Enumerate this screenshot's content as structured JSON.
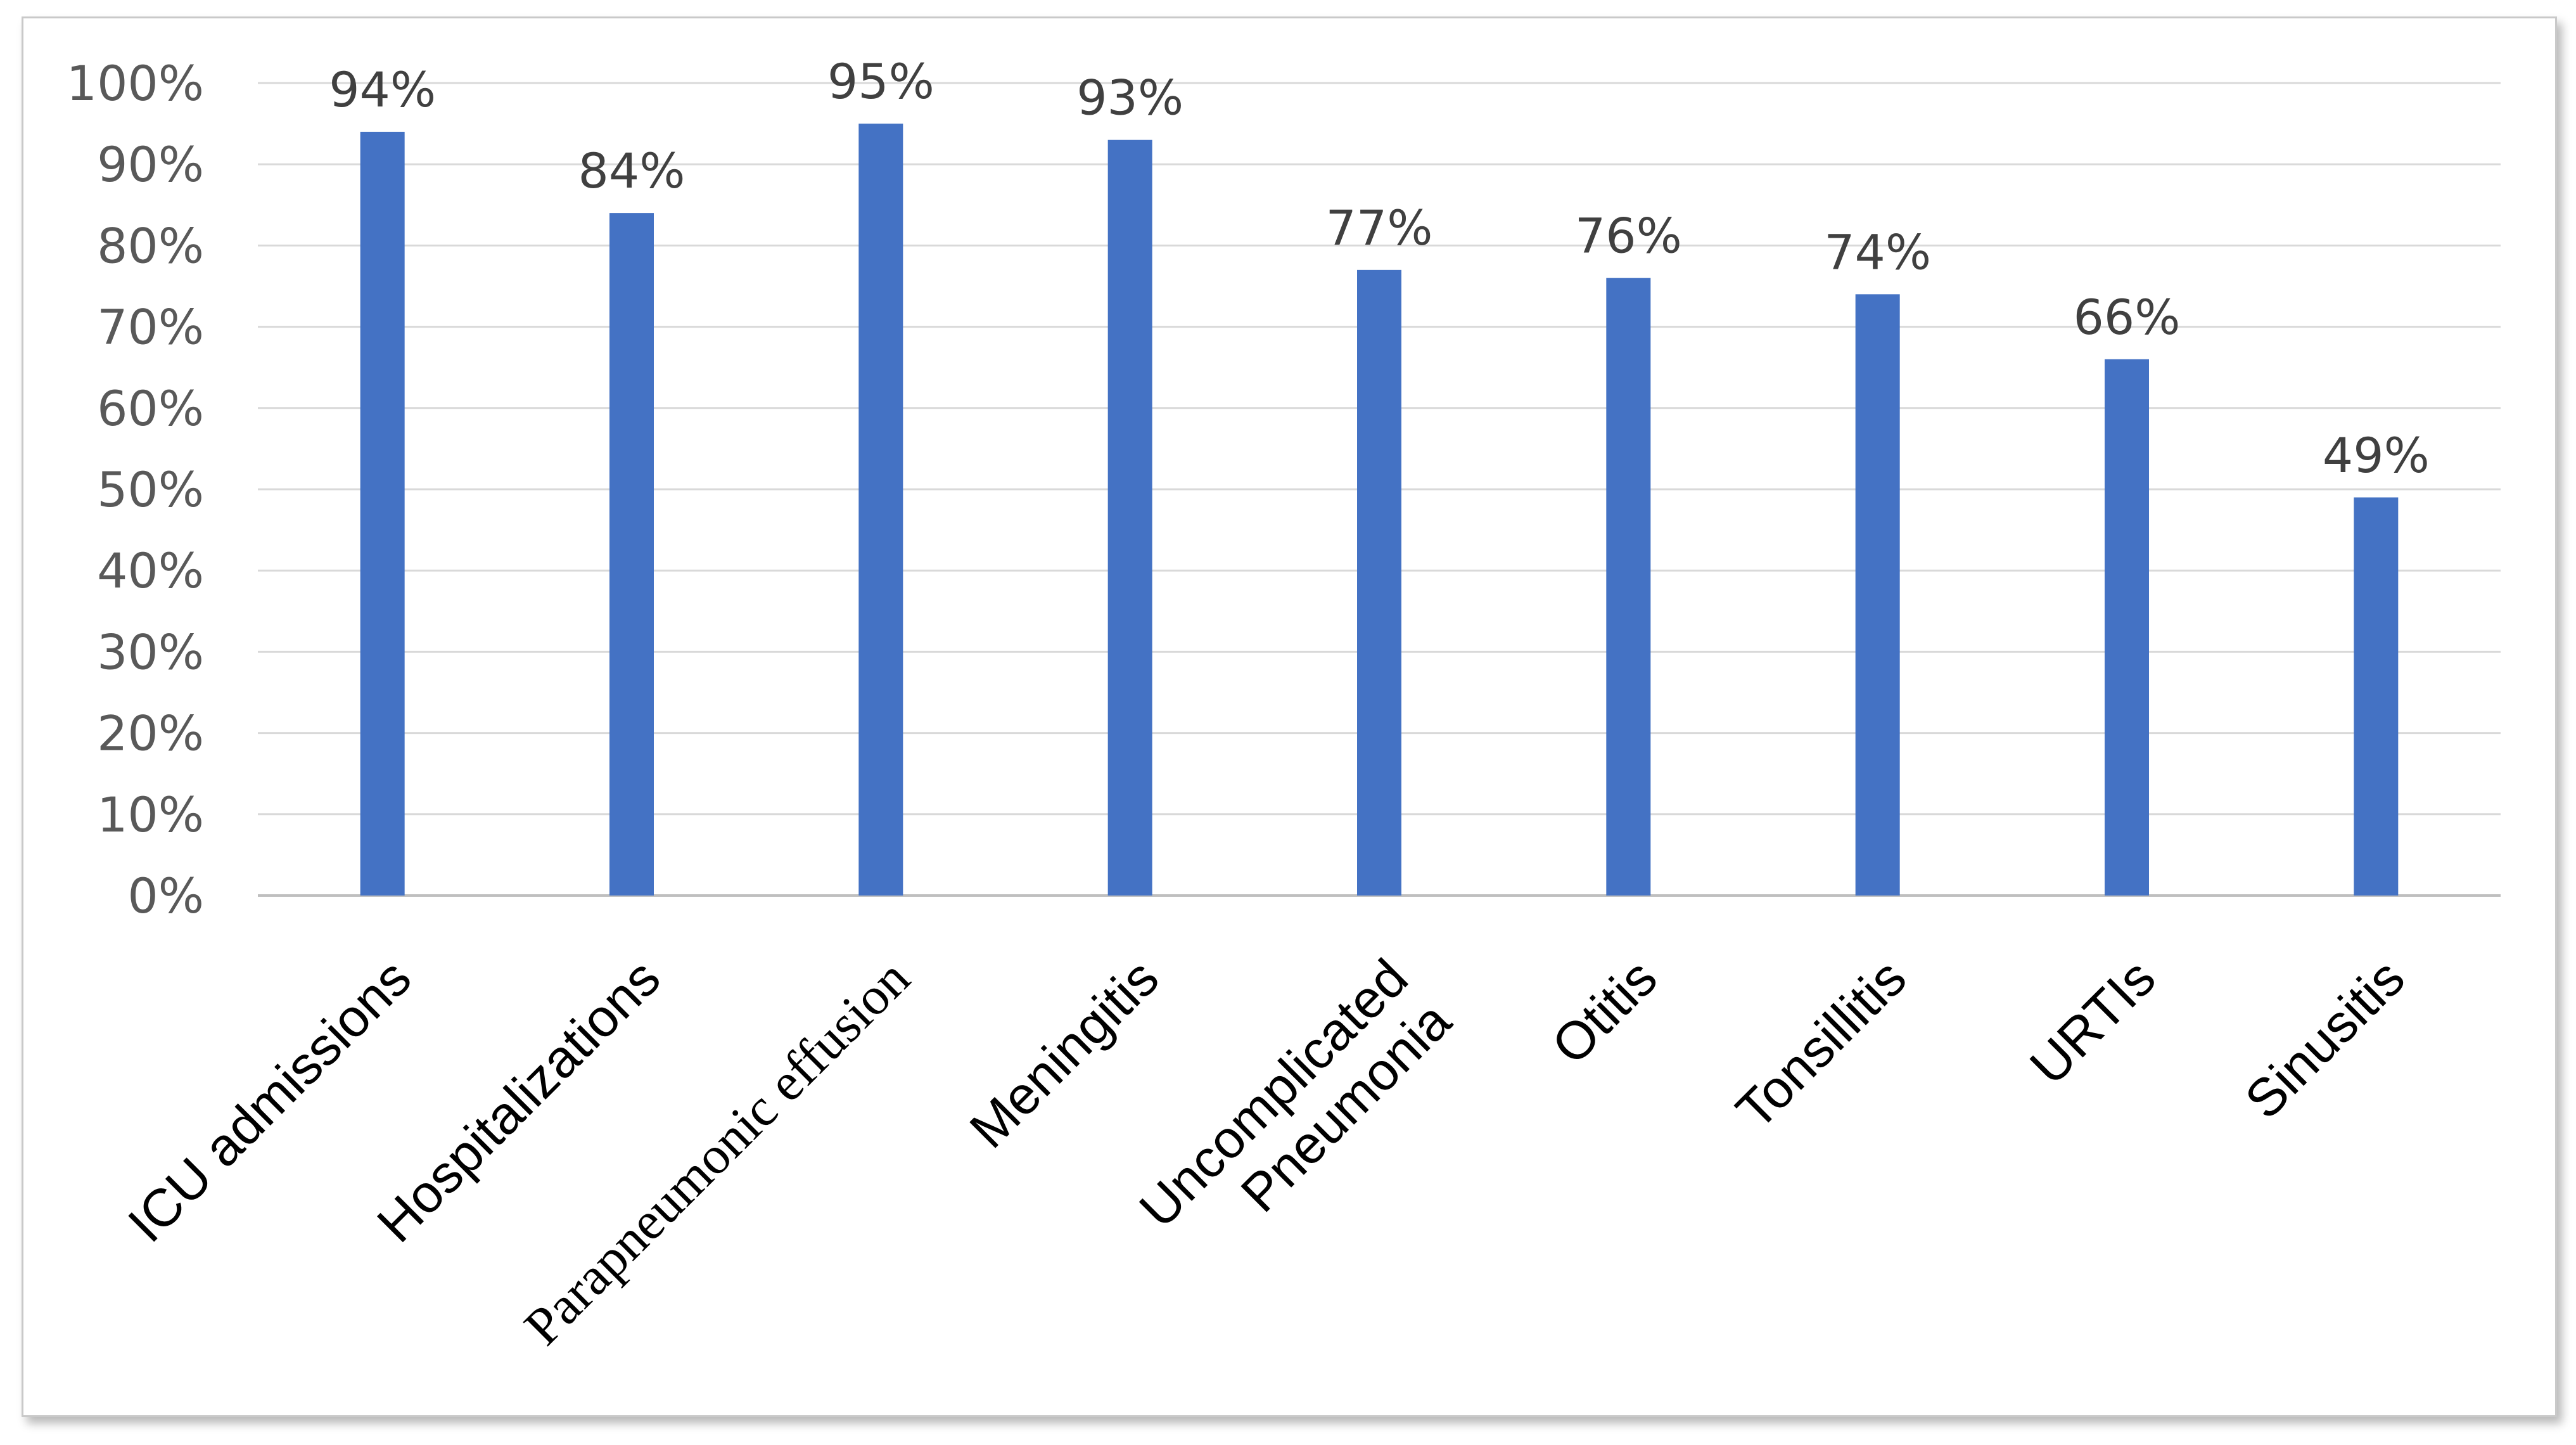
{
  "chart_data": {
    "type": "bar",
    "title": "",
    "xlabel": "",
    "ylabel": "",
    "ylim": [
      0,
      100
    ],
    "y_ticks": [
      "0%",
      "10%",
      "20%",
      "30%",
      "40%",
      "50%",
      "60%",
      "70%",
      "80%",
      "90%",
      "100%"
    ],
    "grid": true,
    "bar_color": "#4472C4",
    "categories": [
      "ICU admissions",
      "Hospitalizations",
      "Parapneumonic effusion",
      "Meningitis",
      "Uncomplicated Pneumonia",
      "Otitis",
      "Tonsillitis",
      "URTIs",
      "Sinusitis"
    ],
    "values": [
      94,
      84,
      95,
      93,
      77,
      76,
      74,
      66,
      49
    ],
    "data_labels": [
      "94%",
      "84%",
      "95%",
      "93%",
      "77%",
      "76%",
      "74%",
      "66%",
      "49%"
    ]
  }
}
